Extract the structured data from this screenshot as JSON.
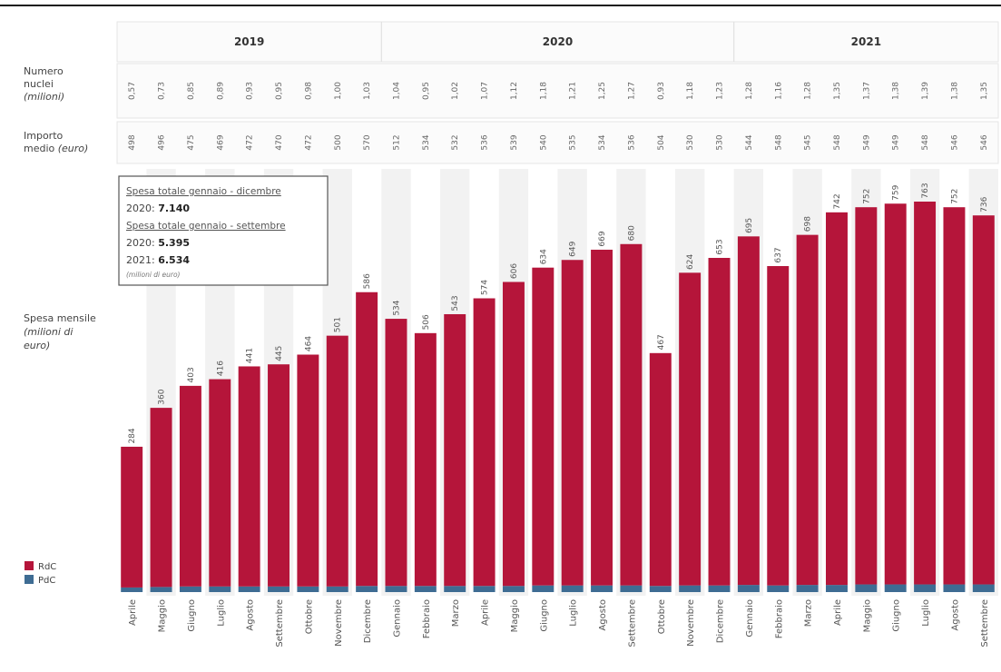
{
  "chart_data": {
    "type": "bar",
    "stacked": true,
    "categories": [
      "Aprile",
      "Maggio",
      "Giugno",
      "Luglio",
      "Agosto",
      "Settembre",
      "Ottobre",
      "Novembre",
      "Dicembre",
      "Gennaio",
      "Febbraio",
      "Marzo",
      "Aprile",
      "Maggio",
      "Giugno",
      "Luglio",
      "Agosto",
      "Settembre",
      "Ottobre",
      "Novembre",
      "Dicembre",
      "Gennaio",
      "Febbraio",
      "Marzo",
      "Aprile",
      "Maggio",
      "Giugno",
      "Luglio",
      "Agosto",
      "Settembre"
    ],
    "years": [
      {
        "label": "2019",
        "count": 9
      },
      {
        "label": "2020",
        "count": 12
      },
      {
        "label": "2021",
        "count": 9
      }
    ],
    "totals": [
      284,
      360,
      403,
      416,
      441,
      445,
      464,
      501,
      586,
      534,
      506,
      543,
      574,
      606,
      634,
      649,
      669,
      680,
      467,
      624,
      653,
      695,
      637,
      698,
      742,
      752,
      759,
      763,
      752,
      736
    ],
    "series": [
      {
        "name": "RdC",
        "color": "#b5153a",
        "values": [
          275,
          350,
          392,
          405,
          430,
          434,
          453,
          490,
          574,
          522,
          494,
          531,
          562,
          594,
          621,
          636,
          656,
          667,
          455,
          611,
          640,
          681,
          624,
          684,
          728,
          737,
          744,
          748,
          737,
          721
        ]
      },
      {
        "name": "PdC",
        "color": "#3e6c93",
        "values": [
          9,
          10,
          11,
          11,
          11,
          11,
          11,
          11,
          12,
          12,
          12,
          12,
          12,
          12,
          13,
          13,
          13,
          13,
          12,
          13,
          13,
          14,
          13,
          14,
          14,
          15,
          15,
          15,
          15,
          15
        ]
      }
    ],
    "ylim": [
      0,
      800
    ],
    "grid": false,
    "legend": "bottom-left",
    "rows": [
      {
        "label_lines": [
          "Numero",
          "nuclei"
        ],
        "label_italic": "(milioni)",
        "values": [
          "0,57",
          "0,73",
          "0,85",
          "0,89",
          "0,93",
          "0,95",
          "0,98",
          "1,00",
          "1,03",
          "1,04",
          "0,95",
          "1,02",
          "1,07",
          "1,12",
          "1,18",
          "1,21",
          "1,25",
          "1,27",
          "0,93",
          "1,18",
          "1,23",
          "1,28",
          "1,16",
          "1,28",
          "1,35",
          "1,37",
          "1,38",
          "1,39",
          "1,38",
          "1,35"
        ]
      },
      {
        "label_lines": [
          "Importo"
        ],
        "label_mixed": [
          "medio",
          "(euro)"
        ],
        "values": [
          "498",
          "496",
          "475",
          "469",
          "472",
          "470",
          "472",
          "500",
          "570",
          "512",
          "534",
          "532",
          "536",
          "539",
          "540",
          "535",
          "534",
          "536",
          "504",
          "530",
          "530",
          "544",
          "548",
          "545",
          "548",
          "549",
          "549",
          "548",
          "546",
          "546"
        ]
      }
    ],
    "y_label_lines": [
      "Spesa mensile"
    ],
    "y_label_italic": [
      "(milioni di",
      "euro)"
    ],
    "annotation": {
      "head1": "Spesa totale gennaio - dicembre",
      "line1_prefix": "2020: ",
      "line1_value": "7.140",
      "head2": "Spesa totale gennaio - settembre",
      "line2_prefix": "2020: ",
      "line2_value": "5.395",
      "line3_prefix": "2021: ",
      "line3_value": "6.534",
      "unit": "(milioni di euro)"
    }
  }
}
